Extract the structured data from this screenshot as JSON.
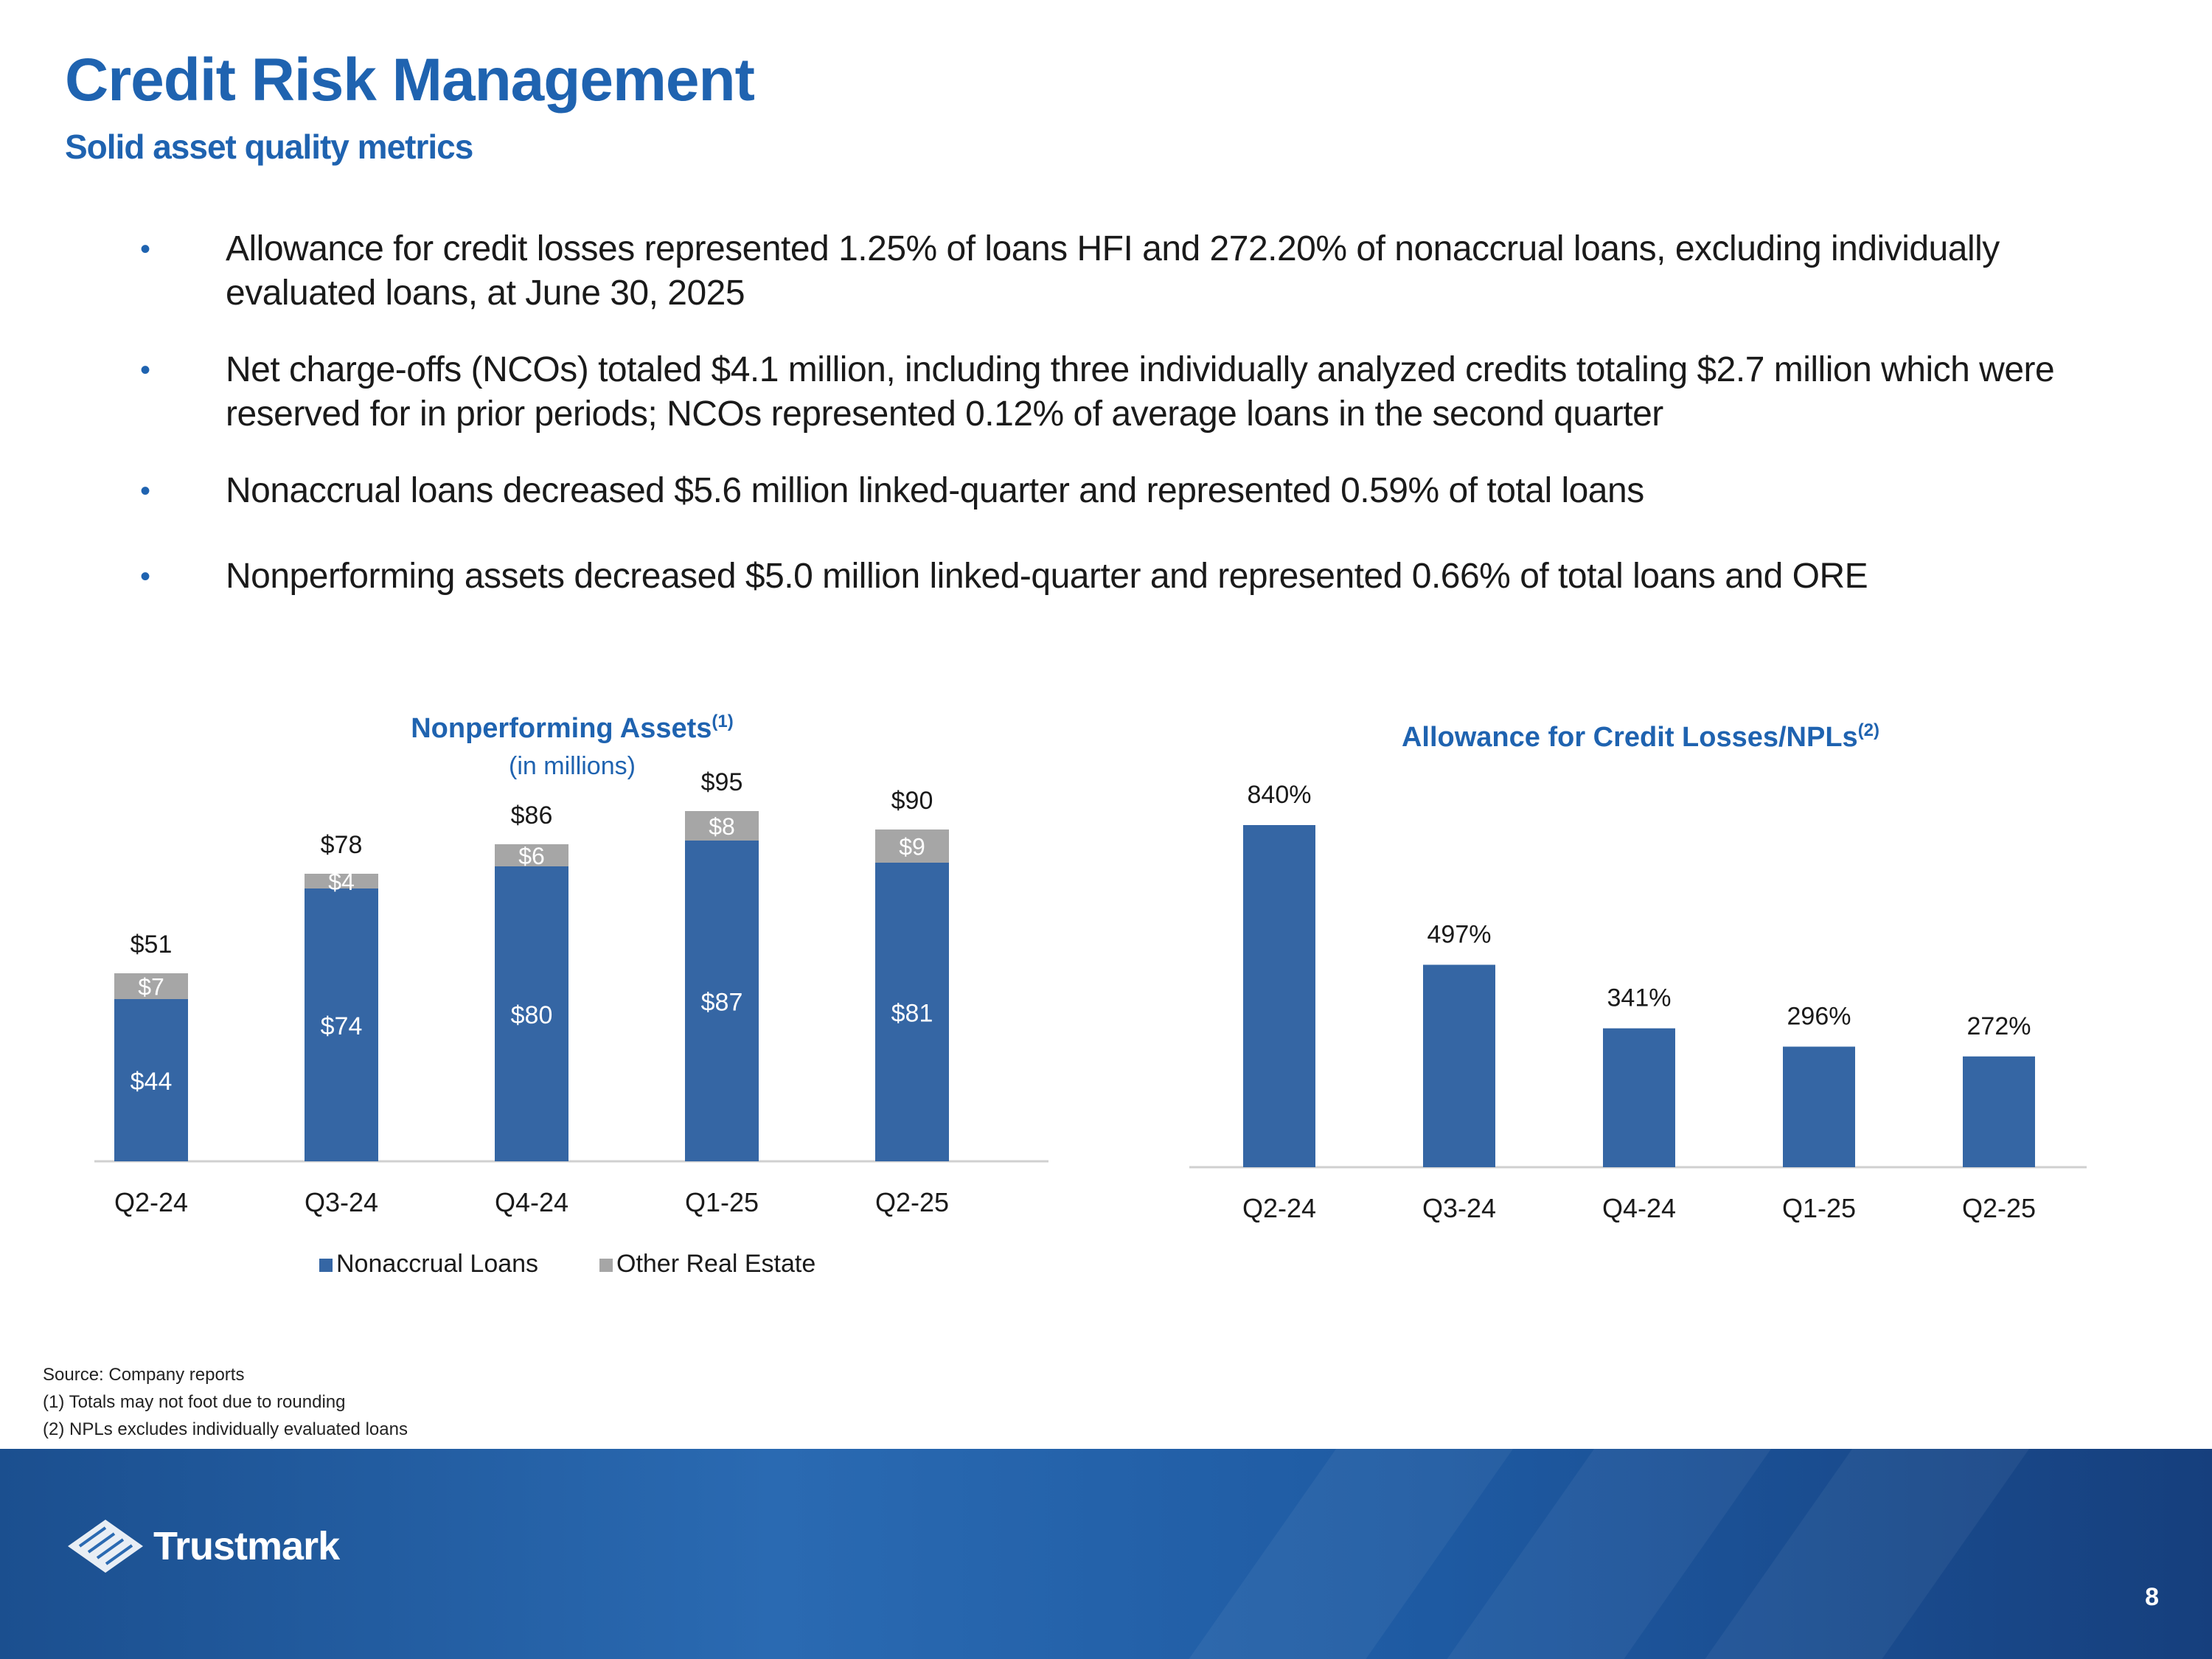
{
  "header": {
    "title": "Credit Risk Management",
    "subtitle": "Solid asset quality metrics"
  },
  "bullets": [
    "Allowance for credit losses represented 1.25% of loans HFI and 272.20% of nonaccrual loans, excluding individually evaluated loans, at June 30, 2025",
    "Net charge-offs (NCOs) totaled $4.1 million, including three individually analyzed credits totaling $2.7 million which were reserved for in prior periods; NCOs represented 0.12% of average loans in the second quarter",
    "Nonaccrual loans decreased $5.6 million linked-quarter and represented 0.59% of total loans",
    "Nonperforming assets decreased $5.0 million linked-quarter and represented 0.66% of total loans and ORE"
  ],
  "colors": {
    "accent": "#1f63b0",
    "bar_primary": "#3566a4",
    "bar_secondary": "#a6a6a6",
    "footer": "#1e5aa2"
  },
  "chart_data": [
    {
      "type": "bar",
      "stacked": true,
      "title": "Nonperforming Assets",
      "title_superscript": "(1)",
      "subtitle": "(in millions)",
      "categories": [
        "Q2-24",
        "Q3-24",
        "Q4-24",
        "Q1-25",
        "Q2-25"
      ],
      "series": [
        {
          "name": "Nonaccrual Loans",
          "values": [
            44,
            74,
            80,
            87,
            81
          ],
          "labels": [
            "$44",
            "$74",
            "$80",
            "$87",
            "$81"
          ],
          "color": "#3566a4"
        },
        {
          "name": "Other Real Estate",
          "values": [
            7,
            4,
            6,
            8,
            9
          ],
          "labels": [
            "$7",
            "$4",
            "$6",
            "$8",
            "$9"
          ],
          "color": "#a6a6a6"
        }
      ],
      "totals": [
        "$51",
        "$78",
        "$86",
        "$95",
        "$90"
      ],
      "total_values": [
        51,
        78,
        86,
        95,
        90
      ],
      "ylim": [
        0,
        100
      ],
      "legend_position": "bottom",
      "grid": false
    },
    {
      "type": "bar",
      "title": "Allowance for Credit Losses/NPLs",
      "title_superscript": "(2)",
      "categories": [
        "Q2-24",
        "Q3-24",
        "Q4-24",
        "Q1-25",
        "Q2-25"
      ],
      "values": [
        840,
        497,
        341,
        296,
        272
      ],
      "labels": [
        "840%",
        "497%",
        "341%",
        "296%",
        "272%"
      ],
      "color": "#3566a4",
      "ylim": [
        0,
        900
      ],
      "grid": false
    }
  ],
  "footnotes": {
    "source": "Source: Company reports",
    "note1": "(1) Totals may not foot due to rounding",
    "note2": "(2) NPLs excludes individually evaluated loans"
  },
  "footer": {
    "logo_text": "Trustmark",
    "page_number": "8"
  }
}
